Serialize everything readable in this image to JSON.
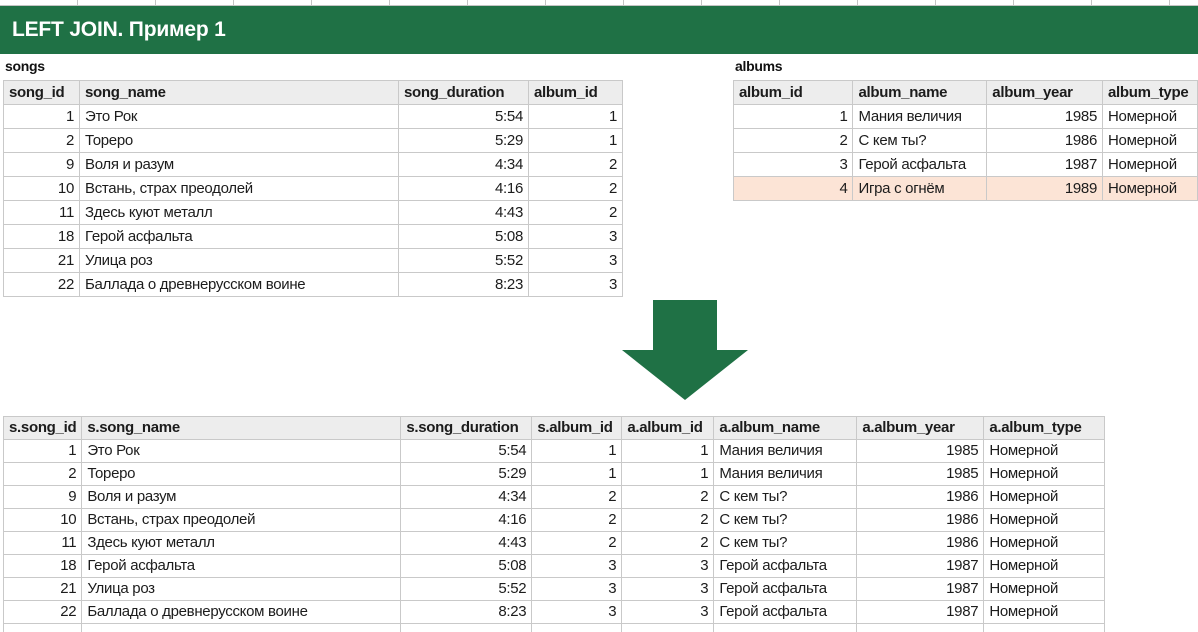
{
  "title_bar": {
    "text": "LEFT JOIN. Пример 1",
    "background": "#1F7145",
    "text_color": "#ffffff"
  },
  "arrow": {
    "icon": "down-arrow",
    "color": "#1F7145"
  },
  "songs": {
    "name": "songs",
    "columns": [
      "song_id",
      "song_name",
      "song_duration",
      "album_id"
    ],
    "rows": [
      [
        "1",
        "Это Рок",
        "5:54",
        "1"
      ],
      [
        "2",
        "Тореро",
        "5:29",
        "1"
      ],
      [
        "9",
        "Воля и разум",
        "4:34",
        "2"
      ],
      [
        "10",
        "Встань, страх преодолей",
        "4:16",
        "2"
      ],
      [
        "11",
        "Здесь куют металл",
        "4:43",
        "2"
      ],
      [
        "18",
        "Герой асфальта",
        "5:08",
        "3"
      ],
      [
        "21",
        "Улица роз",
        "5:52",
        "3"
      ],
      [
        "22",
        "Баллада о древнерусском воине",
        "8:23",
        "3"
      ]
    ]
  },
  "albums": {
    "name": "albums",
    "columns": [
      "album_id",
      "album_name",
      "album_year",
      "album_type"
    ],
    "rows": [
      [
        "1",
        "Мания величия",
        "1985",
        "Номерной"
      ],
      [
        "2",
        "С кем ты?",
        "1986",
        "Номерной"
      ],
      [
        "3",
        "Герой асфальта",
        "1987",
        "Номерной"
      ],
      [
        "4",
        "Игра с огнём",
        "1989",
        "Номерной"
      ]
    ],
    "highlight_row": 3,
    "highlight_color": "#FCE4D6"
  },
  "result": {
    "name": "left-join-result",
    "columns": [
      "s.song_id",
      "s.song_name",
      "s.song_duration",
      "s.album_id",
      "a.album_id",
      "a.album_name",
      "a.album_year",
      "a.album_type"
    ],
    "rows": [
      [
        "1",
        "Это Рок",
        "5:54",
        "1",
        "1",
        "Мания величия",
        "1985",
        "Номерной"
      ],
      [
        "2",
        "Тореро",
        "5:29",
        "1",
        "1",
        "Мания величия",
        "1985",
        "Номерной"
      ],
      [
        "9",
        "Воля и разум",
        "4:34",
        "2",
        "2",
        "С кем ты?",
        "1986",
        "Номерной"
      ],
      [
        "10",
        "Встань, страх преодолей",
        "4:16",
        "2",
        "2",
        "С кем ты?",
        "1986",
        "Номерной"
      ],
      [
        "11",
        "Здесь куют металл",
        "4:43",
        "2",
        "2",
        "С кем ты?",
        "1986",
        "Номерной"
      ],
      [
        "18",
        "Герой асфальта",
        "5:08",
        "3",
        "3",
        "Герой асфальта",
        "1987",
        "Номерной"
      ],
      [
        "21",
        "Улица роз",
        "5:52",
        "3",
        "3",
        "Герой асфальта",
        "1987",
        "Номерной"
      ],
      [
        "22",
        "Баллада о древнерусском воине",
        "8:23",
        "3",
        "3",
        "Герой асфальта",
        "1987",
        "Номерной"
      ]
    ]
  }
}
